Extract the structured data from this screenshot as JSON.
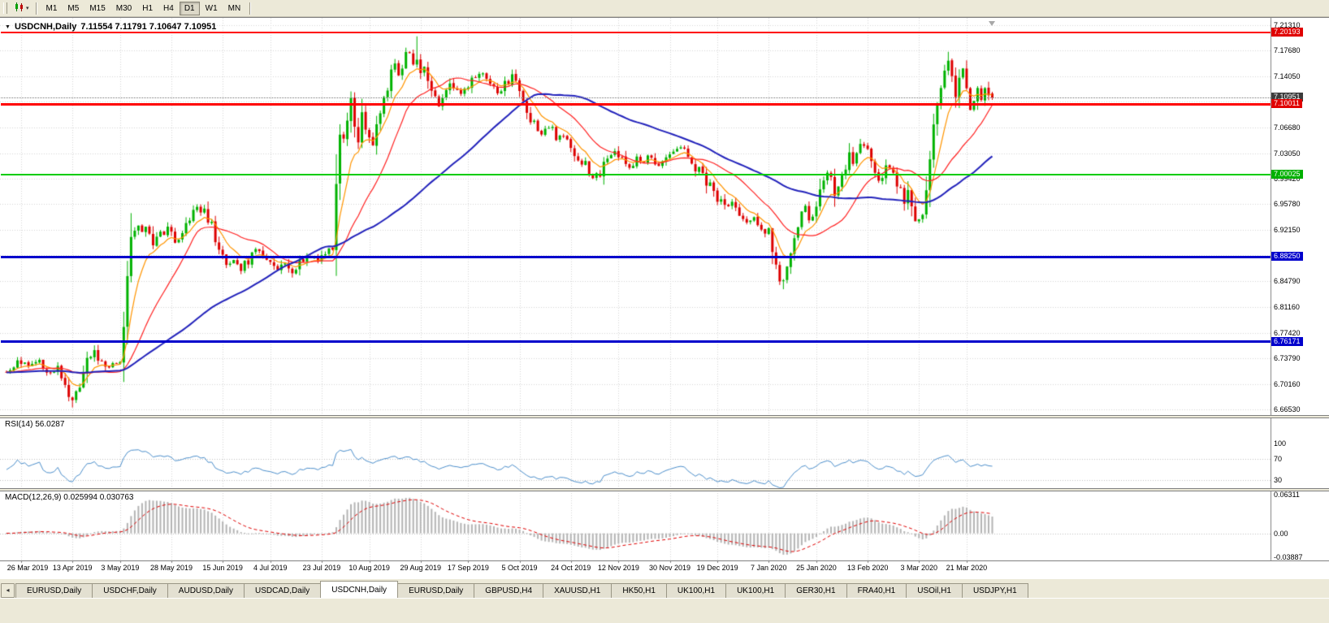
{
  "toolbar": {
    "timeframes": [
      {
        "label": "M1"
      },
      {
        "label": "M5"
      },
      {
        "label": "M15"
      },
      {
        "label": "M30"
      },
      {
        "label": "H1"
      },
      {
        "label": "H4"
      },
      {
        "label": "D1"
      },
      {
        "label": "W1"
      },
      {
        "label": "MN"
      }
    ],
    "active_timeframe": "D1"
  },
  "chart_header": {
    "title": "USDCNH,Daily",
    "ohlc": "7.11554 7.11791 7.10647 7.10951"
  },
  "rsi": {
    "title": "RSI(14) 56.0287",
    "axis_labels": [
      "100",
      "70",
      "30"
    ],
    "axis_values": [
      100,
      70,
      30
    ],
    "level_lines": [
      70,
      30
    ],
    "line_color": "#4C8FCC"
  },
  "macd": {
    "title": "MACD(12,26,9) 0.025994 0.030763",
    "axis_labels": [
      "0.06311",
      "0.00",
      "-0.03887"
    ],
    "axis_values": [
      0.06311,
      0,
      -0.03887
    ],
    "histogram_color": "#B4B4B4",
    "signal_color": "#E00000"
  },
  "tabs": {
    "items": [
      {
        "label": "EURUSD,Daily"
      },
      {
        "label": "USDCHF,Daily"
      },
      {
        "label": "AUDUSD,Daily"
      },
      {
        "label": "USDCAD,Daily"
      },
      {
        "label": "USDCNH,Daily"
      },
      {
        "label": "EURUSD,Daily"
      },
      {
        "label": "GBPUSD,H4"
      },
      {
        "label": "XAUUSD,H1"
      },
      {
        "label": "HK50,H1"
      },
      {
        "label": "UK100,H1"
      },
      {
        "label": "UK100,H1"
      },
      {
        "label": "GER30,H1"
      },
      {
        "label": "FRA40,H1"
      },
      {
        "label": "USOil,H1"
      },
      {
        "label": "USDJPY,H1"
      }
    ],
    "active_index": 4,
    "scroll_left_glyph": "◂"
  },
  "chart_data": {
    "type": "candlestick",
    "symbol": "USDCNH",
    "timeframe": "Daily",
    "ohlc_display": {
      "open": "7.11554",
      "high": "7.11791",
      "low": "7.10647",
      "close": "7.10951"
    },
    "bars_total": 270,
    "seed": 7,
    "up_color": "#00B200",
    "down_color": "#DD0000",
    "price_scale": {
      "min": 6.656,
      "max": 7.221
    },
    "y_gridlines": [
      {
        "value": 7.2131,
        "label": "7.21310",
        "show": true
      },
      {
        "value": 7.1768,
        "label": "7.17680",
        "show": true
      },
      {
        "value": 7.1405,
        "label": "7.14050",
        "show": true
      },
      {
        "value": 7.1042,
        "label": "7.10420",
        "show": false
      },
      {
        "value": 7.0668,
        "label": "7.06680",
        "show": true
      },
      {
        "value": 7.0305,
        "label": "7.03050",
        "show": true
      },
      {
        "value": 6.9942,
        "label": "6.99420",
        "show": true
      },
      {
        "value": 6.9578,
        "label": "6.95780",
        "show": true
      },
      {
        "value": 6.9215,
        "label": "6.92150",
        "show": true
      },
      {
        "value": 6.8852,
        "label": "6.88520",
        "show": false
      },
      {
        "value": 6.8479,
        "label": "6.84790",
        "show": true
      },
      {
        "value": 6.8116,
        "label": "6.81160",
        "show": true
      },
      {
        "value": 6.7742,
        "label": "6.77420",
        "show": true
      },
      {
        "value": 6.7379,
        "label": "6.73790",
        "show": true
      },
      {
        "value": 6.7016,
        "label": "6.70160",
        "show": true
      },
      {
        "value": 6.6653,
        "label": "6.66530",
        "show": true
      }
    ],
    "x_labels": [
      {
        "bar": 4,
        "label": "26 Mar 2019"
      },
      {
        "bar": 18,
        "label": "13 Apr 2019"
      },
      {
        "bar": 31,
        "label": "3 May 2019"
      },
      {
        "bar": 45,
        "label": "28 May 2019"
      },
      {
        "bar": 59,
        "label": "15 Jun 2019"
      },
      {
        "bar": 72,
        "label": "4 Jul 2019"
      },
      {
        "bar": 86,
        "label": "23 Jul 2019"
      },
      {
        "bar": 99,
        "label": "10 Aug 2019"
      },
      {
        "bar": 113,
        "label": "29 Aug 2019"
      },
      {
        "bar": 126,
        "label": "17 Sep 2019"
      },
      {
        "bar": 140,
        "label": "5 Oct 2019"
      },
      {
        "bar": 154,
        "label": "24 Oct 2019"
      },
      {
        "bar": 167,
        "label": "12 Nov 2019"
      },
      {
        "bar": 181,
        "label": "30 Nov 2019"
      },
      {
        "bar": 194,
        "label": "19 Dec 2019"
      },
      {
        "bar": 208,
        "label": "7 Jan 2020"
      },
      {
        "bar": 221,
        "label": "25 Jan 2020"
      },
      {
        "bar": 235,
        "label": "13 Feb 2020"
      },
      {
        "bar": 249,
        "label": "3 Mar 2020"
      },
      {
        "bar": 262,
        "label": "21 Mar 2020"
      }
    ],
    "levels": [
      {
        "value": 7.20193,
        "label": "7.20193",
        "color": "#FF0000",
        "width": 2,
        "tag": "#E00000",
        "style": "solid",
        "name": "resistance-line-upper"
      },
      {
        "value": 7.10951,
        "label": "7.10951",
        "color": "#808080",
        "width": 1,
        "tag": "#3C3C3C",
        "style": "dotted",
        "name": "current-price-line"
      },
      {
        "value": 7.10011,
        "label": "7.10011",
        "color": "#FF0000",
        "width": 3,
        "tag": "#E00000",
        "style": "solid",
        "name": "resistance-line-mid"
      },
      {
        "value": 7.00025,
        "label": "7.00025",
        "color": "#00CC00",
        "width": 2,
        "tag": "#00B000",
        "style": "solid",
        "name": "support-line-green"
      },
      {
        "value": 6.8825,
        "label": "6.88250",
        "color": "#0000CC",
        "width": 3,
        "tag": "#0000CC",
        "style": "solid",
        "name": "support-line-blue-upper"
      },
      {
        "value": 6.76171,
        "label": "6.76171",
        "color": "#0000CC",
        "width": 3,
        "tag": "#0000CC",
        "style": "solid",
        "name": "support-line-blue-lower"
      }
    ],
    "moving_averages": [
      {
        "name": "fast",
        "type": "ema",
        "period": 8,
        "color": "#FF9500",
        "width": 1.2
      },
      {
        "name": "mid",
        "type": "sma",
        "period": 20,
        "color": "#FF2020",
        "width": 1.2
      },
      {
        "name": "slow",
        "type": "sma",
        "period": 55,
        "color": "#2222BB",
        "width": 2
      }
    ],
    "close_anchors": [
      [
        0,
        6.722
      ],
      [
        3,
        6.734
      ],
      [
        6,
        6.728
      ],
      [
        9,
        6.736
      ],
      [
        12,
        6.716
      ],
      [
        14,
        6.728
      ],
      [
        16,
        6.703
      ],
      [
        18,
        6.681
      ],
      [
        20,
        6.7
      ],
      [
        22,
        6.734
      ],
      [
        24,
        6.748
      ],
      [
        26,
        6.731
      ],
      [
        28,
        6.726
      ],
      [
        30,
        6.734
      ],
      [
        31,
        6.742
      ],
      [
        32,
        6.792
      ],
      [
        33,
        6.858
      ],
      [
        34,
        6.902
      ],
      [
        36,
        6.932
      ],
      [
        38,
        6.918
      ],
      [
        40,
        6.896
      ],
      [
        42,
        6.914
      ],
      [
        44,
        6.928
      ],
      [
        46,
        6.906
      ],
      [
        48,
        6.922
      ],
      [
        50,
        6.94
      ],
      [
        52,
        6.951
      ],
      [
        54,
        6.946
      ],
      [
        56,
        6.924
      ],
      [
        58,
        6.898
      ],
      [
        60,
        6.874
      ],
      [
        62,
        6.882
      ],
      [
        64,
        6.86
      ],
      [
        66,
        6.878
      ],
      [
        68,
        6.893
      ],
      [
        70,
        6.887
      ],
      [
        72,
        6.879
      ],
      [
        74,
        6.866
      ],
      [
        76,
        6.873
      ],
      [
        78,
        6.862
      ],
      [
        80,
        6.877
      ],
      [
        82,
        6.885
      ],
      [
        84,
        6.879
      ],
      [
        86,
        6.882
      ],
      [
        88,
        6.886
      ],
      [
        89,
        6.902
      ],
      [
        90,
        6.978
      ],
      [
        91,
        7.058
      ],
      [
        92,
        7.044
      ],
      [
        93,
        7.086
      ],
      [
        94,
        7.104
      ],
      [
        95,
        7.062
      ],
      [
        96,
        7.05
      ],
      [
        97,
        7.084
      ],
      [
        98,
        7.072
      ],
      [
        99,
        7.057
      ],
      [
        100,
        7.044
      ],
      [
        101,
        7.066
      ],
      [
        102,
        7.092
      ],
      [
        103,
        7.112
      ],
      [
        104,
        7.126
      ],
      [
        105,
        7.148
      ],
      [
        106,
        7.159
      ],
      [
        107,
        7.143
      ],
      [
        108,
        7.156
      ],
      [
        109,
        7.167
      ],
      [
        110,
        7.171
      ],
      [
        111,
        7.152
      ],
      [
        112,
        7.164
      ],
      [
        113,
        7.152
      ],
      [
        114,
        7.143
      ],
      [
        115,
        7.129
      ],
      [
        116,
        7.124
      ],
      [
        117,
        7.107
      ],
      [
        118,
        7.094
      ],
      [
        119,
        7.119
      ],
      [
        120,
        7.117
      ],
      [
        121,
        7.134
      ],
      [
        122,
        7.129
      ],
      [
        124,
        7.117
      ],
      [
        126,
        7.124
      ],
      [
        128,
        7.139
      ],
      [
        130,
        7.147
      ],
      [
        132,
        7.134
      ],
      [
        134,
        7.119
      ],
      [
        136,
        7.127
      ],
      [
        138,
        7.141
      ],
      [
        140,
        7.114
      ],
      [
        142,
        7.089
      ],
      [
        144,
        7.071
      ],
      [
        146,
        7.059
      ],
      [
        148,
        7.071
      ],
      [
        150,
        7.047
      ],
      [
        152,
        7.059
      ],
      [
        154,
        7.037
      ],
      [
        156,
        7.027
      ],
      [
        158,
        7.011
      ],
      [
        160,
        6.991
      ],
      [
        162,
        7.004
      ],
      [
        164,
        7.027
      ],
      [
        166,
        7.034
      ],
      [
        168,
        7.024
      ],
      [
        170,
        7.012
      ],
      [
        172,
        7.024
      ],
      [
        174,
        7.017
      ],
      [
        176,
        7.027
      ],
      [
        178,
        7.014
      ],
      [
        180,
        7.021
      ],
      [
        182,
        7.033
      ],
      [
        184,
        7.041
      ],
      [
        186,
        7.026
      ],
      [
        188,
        7.012
      ],
      [
        190,
        6.998
      ],
      [
        192,
        6.984
      ],
      [
        194,
        6.968
      ],
      [
        196,
        6.956
      ],
      [
        198,
        6.961
      ],
      [
        200,
        6.941
      ],
      [
        202,
        6.929
      ],
      [
        204,
        6.937
      ],
      [
        206,
        6.924
      ],
      [
        208,
        6.916
      ],
      [
        209,
        6.894
      ],
      [
        210,
        6.869
      ],
      [
        211,
        6.857
      ],
      [
        212,
        6.849
      ],
      [
        213,
        6.861
      ],
      [
        214,
        6.877
      ],
      [
        215,
        6.904
      ],
      [
        216,
        6.927
      ],
      [
        217,
        6.944
      ],
      [
        218,
        6.951
      ],
      [
        219,
        6.937
      ],
      [
        220,
        6.949
      ],
      [
        221,
        6.961
      ],
      [
        222,
        6.974
      ],
      [
        223,
        6.991
      ],
      [
        224,
        7.001
      ],
      [
        225,
        6.987
      ],
      [
        226,
        6.971
      ],
      [
        227,
        6.984
      ],
      [
        228,
        6.997
      ],
      [
        229,
        7.011
      ],
      [
        230,
        7.027
      ],
      [
        231,
        7.019
      ],
      [
        232,
        7.034
      ],
      [
        233,
        7.047
      ],
      [
        234,
        7.039
      ],
      [
        235,
        7.027
      ],
      [
        236,
        7.014
      ],
      [
        237,
        7.001
      ],
      [
        238,
        6.991
      ],
      [
        239,
        7.004
      ],
      [
        240,
        7.017
      ],
      [
        241,
        7.009
      ],
      [
        242,
        6.997
      ],
      [
        243,
        6.984
      ],
      [
        244,
        6.971
      ],
      [
        245,
        6.957
      ],
      [
        246,
        6.974
      ],
      [
        247,
        6.961
      ],
      [
        248,
        6.944
      ],
      [
        249,
        6.931
      ],
      [
        250,
        6.954
      ],
      [
        251,
        6.989
      ],
      [
        252,
        7.029
      ],
      [
        253,
        7.064
      ],
      [
        254,
        7.099
      ],
      [
        255,
        7.127
      ],
      [
        256,
        7.149
      ],
      [
        257,
        7.163
      ],
      [
        258,
        7.137
      ],
      [
        259,
        7.109
      ],
      [
        260,
        7.134
      ],
      [
        261,
        7.149
      ],
      [
        262,
        7.117
      ],
      [
        263,
        7.091
      ],
      [
        264,
        7.114
      ],
      [
        265,
        7.129
      ],
      [
        266,
        7.104
      ],
      [
        267,
        7.121
      ],
      [
        268,
        7.111
      ],
      [
        269,
        7.10951
      ]
    ],
    "forced": {
      "18": {
        "low": 6.668
      },
      "34": {
        "high": 6.945
      },
      "112": {
        "high": 7.197
      },
      "212": {
        "low": 6.8365
      },
      "257": {
        "high": 7.175
      },
      "269": {
        "open": 7.11554,
        "high": 7.11791,
        "low": 7.10647,
        "close": 7.10951
      }
    }
  }
}
